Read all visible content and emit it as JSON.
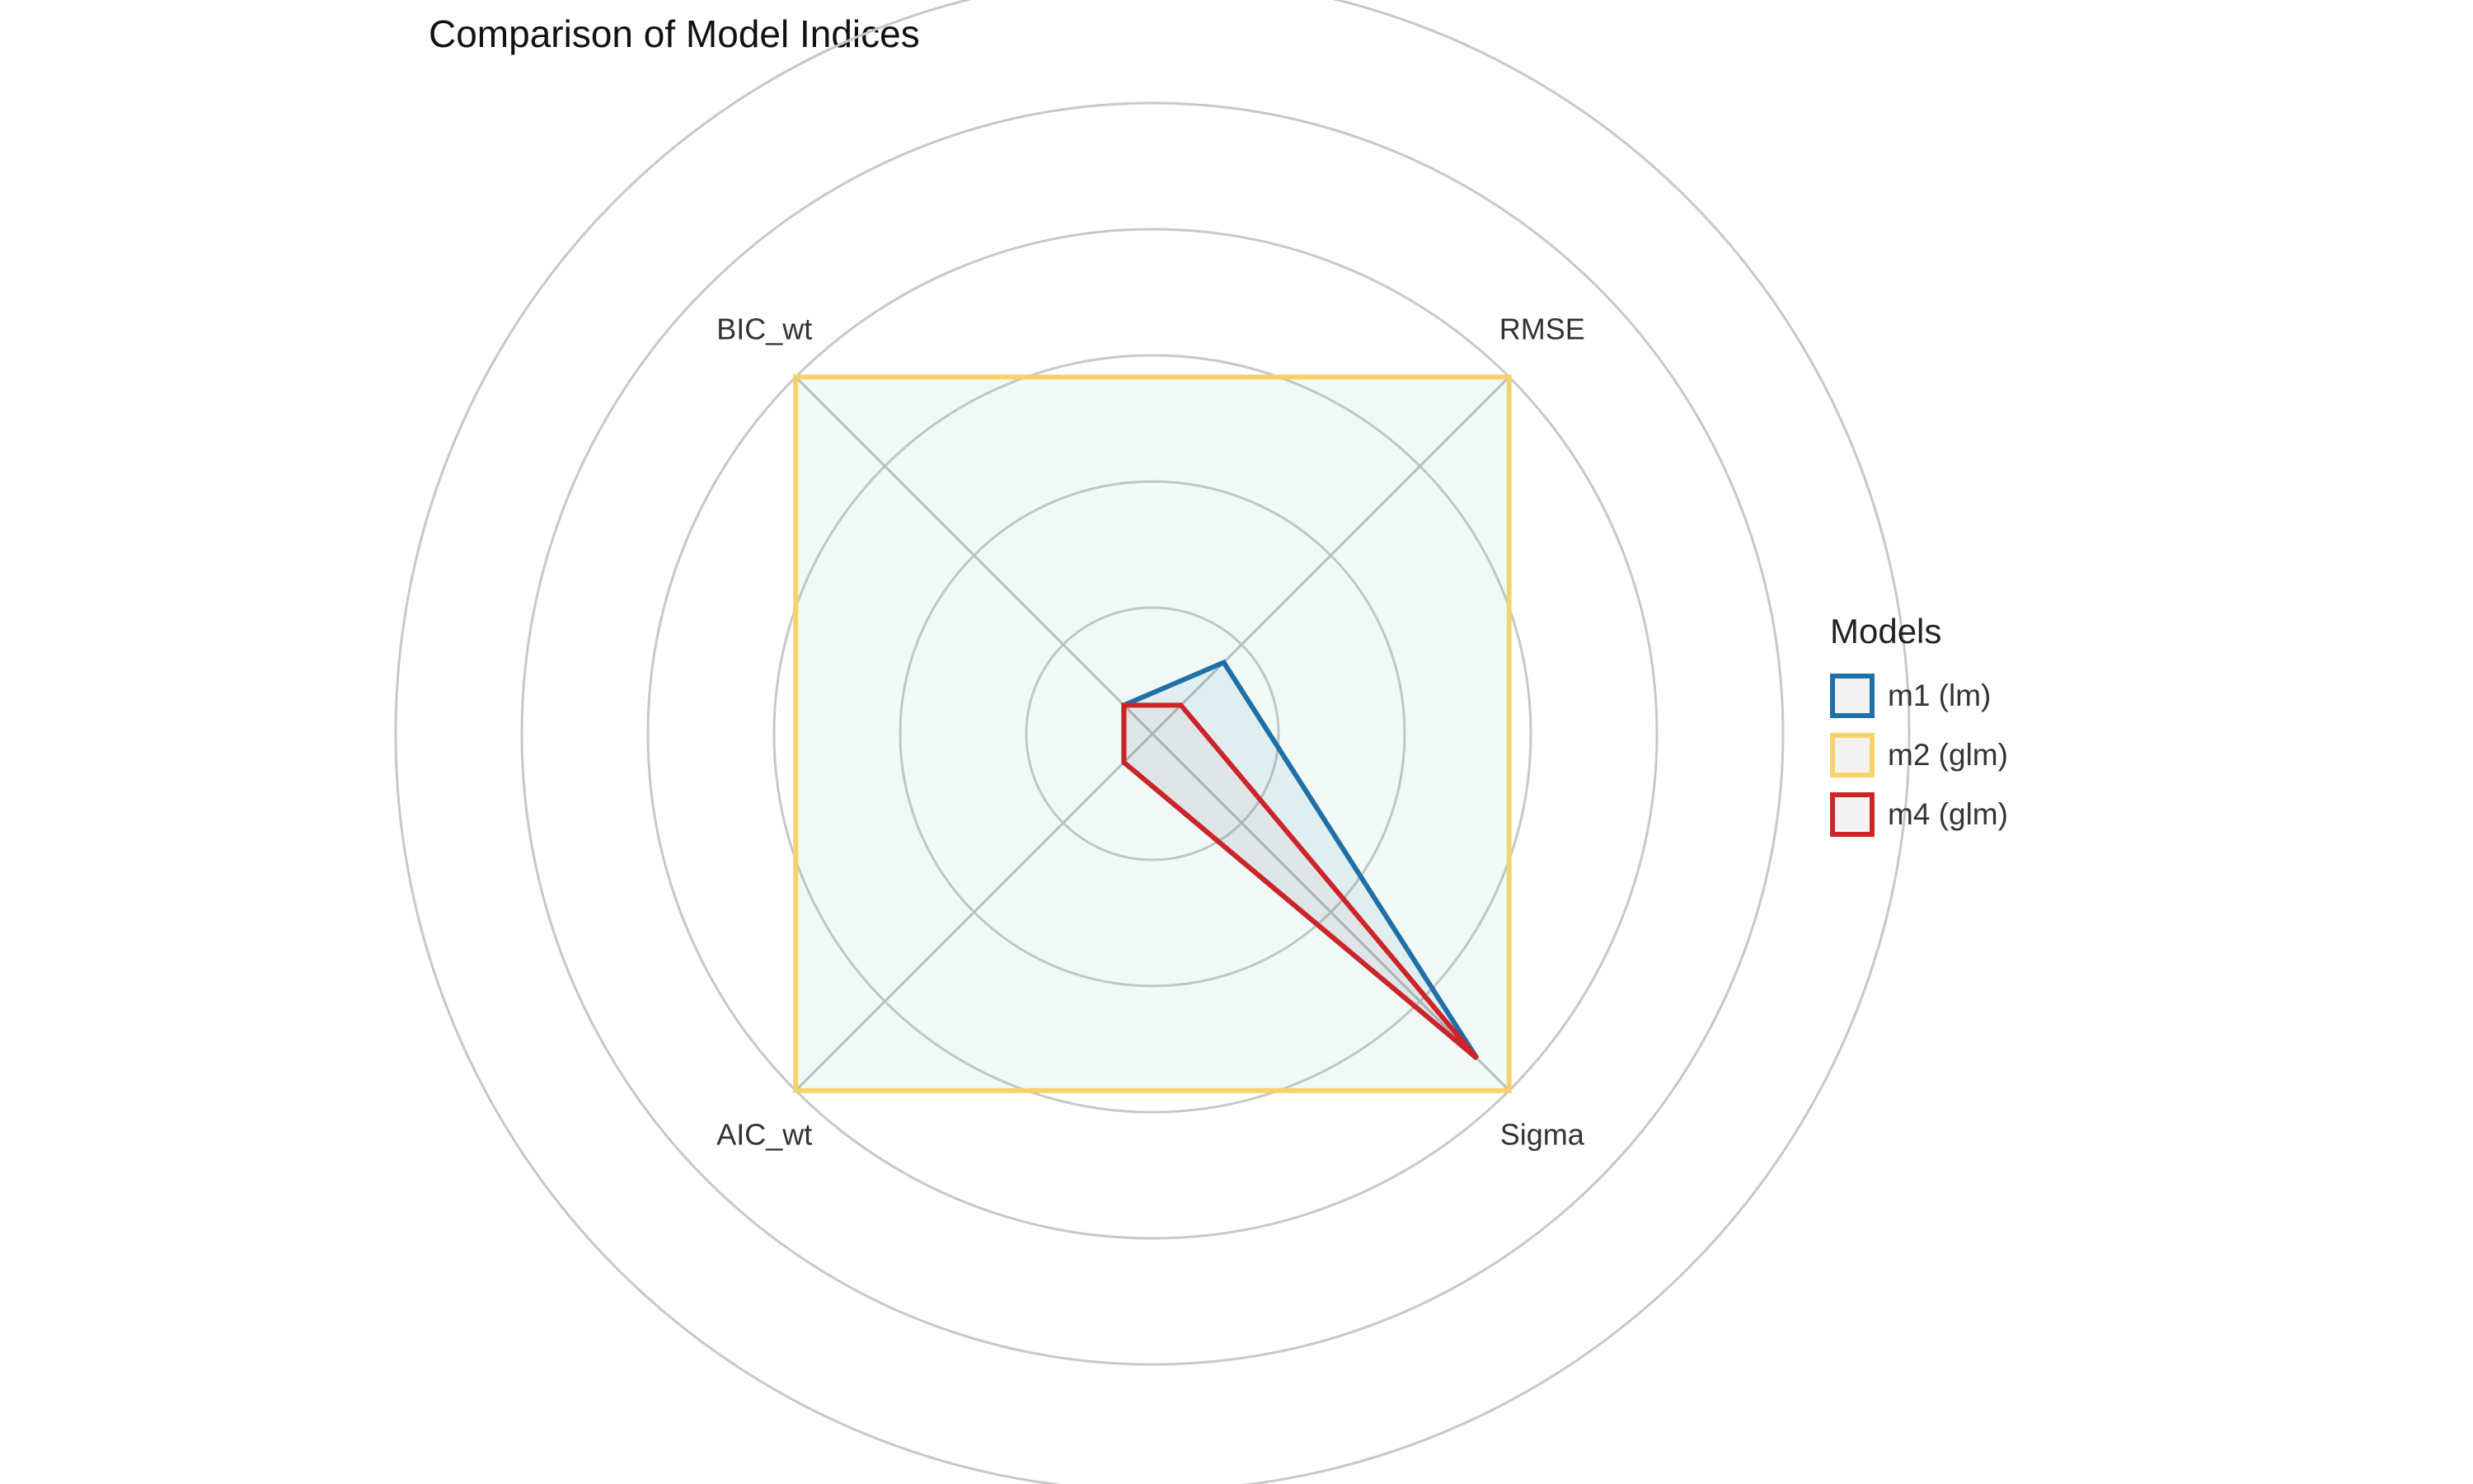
{
  "chart_data": {
    "type": "radar",
    "title": "Comparison of Model Indices",
    "axes": [
      "RMSE",
      "Sigma",
      "AIC_wt",
      "BIC_wt"
    ],
    "rlim": [
      0,
      1.5
    ],
    "grid_levels": [
      0.25,
      0.5,
      0.75,
      1.0,
      1.25,
      1.5
    ],
    "grid": true,
    "legend_title": "Models",
    "legend_position": "right",
    "series": [
      {
        "name": "m1 (lm)",
        "color": "#1f6fa8",
        "values": [
          0.2,
          0.91,
          0.08,
          0.08
        ]
      },
      {
        "name": "m2 (glm)",
        "color": "#f6d36a",
        "values": [
          1.0,
          1.0,
          1.0,
          1.0
        ]
      },
      {
        "name": "m4 (glm)",
        "color": "#cc2428",
        "values": [
          0.08,
          0.91,
          0.08,
          0.08
        ]
      }
    ]
  }
}
